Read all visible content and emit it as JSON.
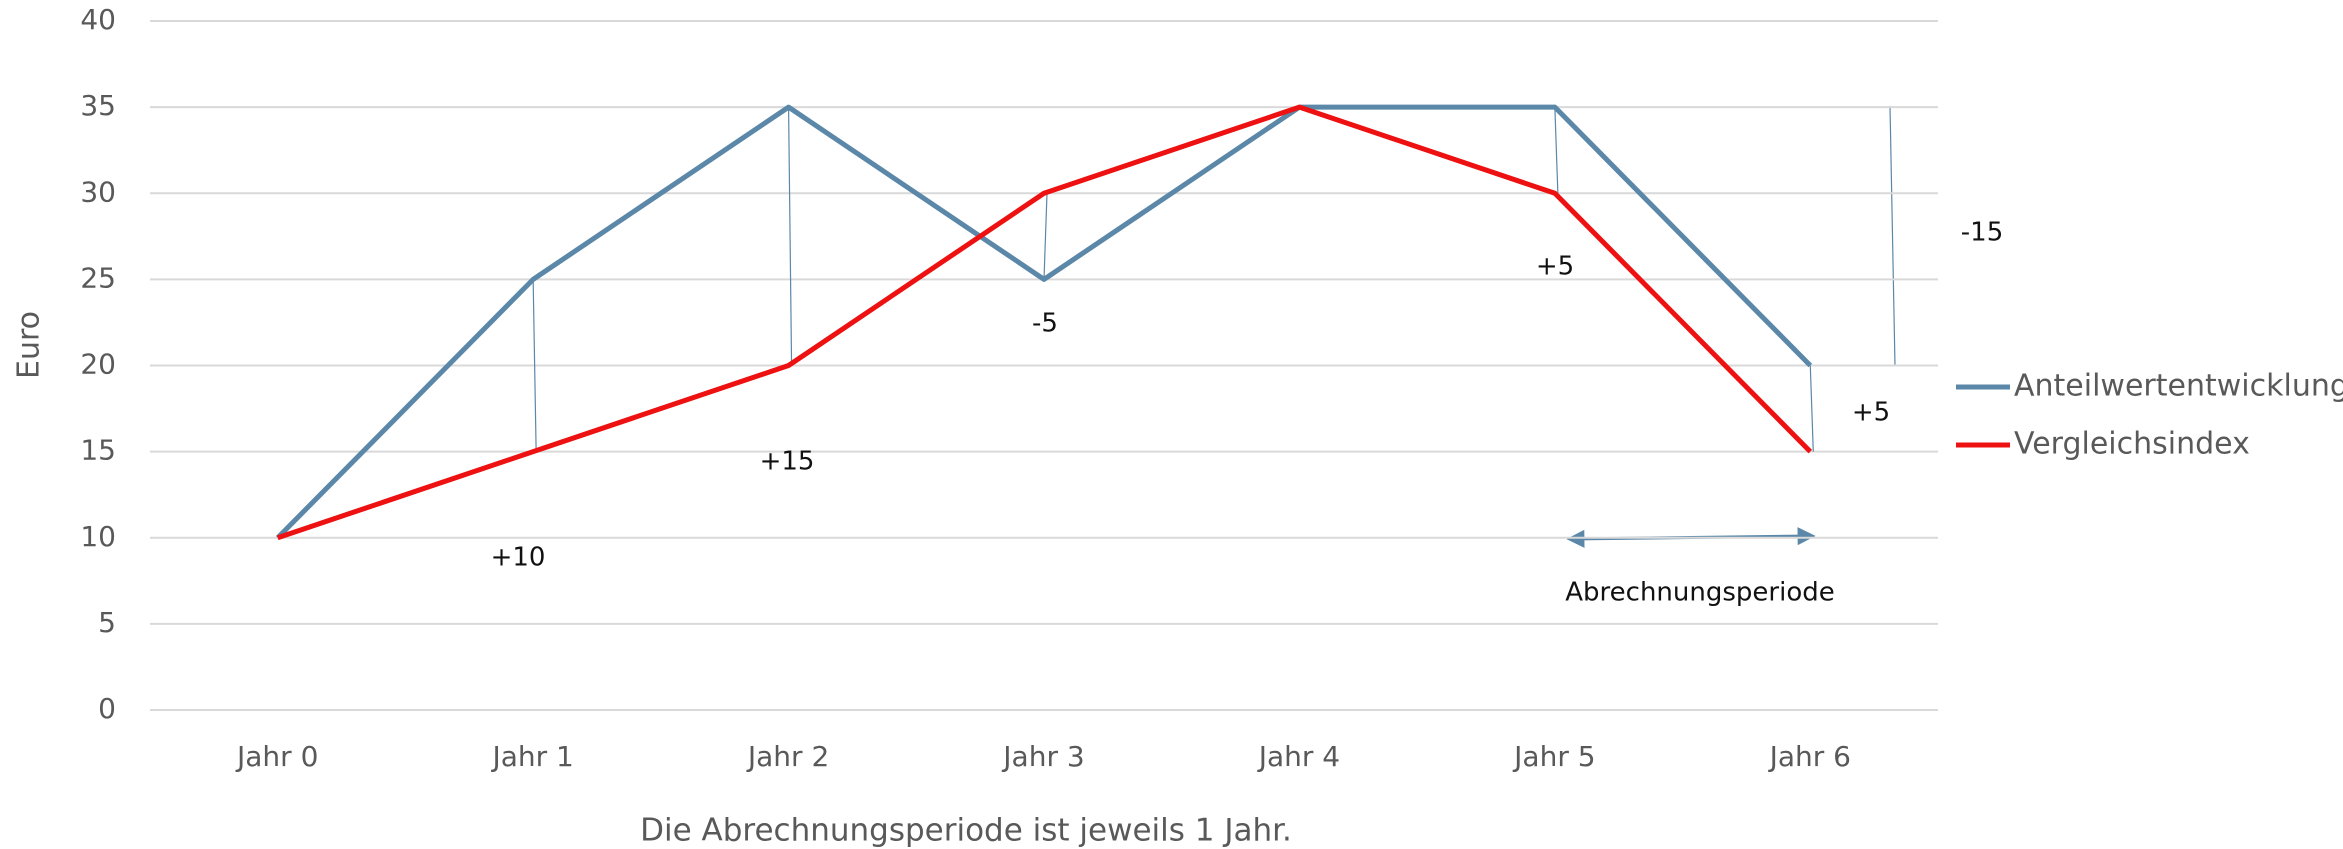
{
  "chart_data": {
    "type": "line",
    "categories": [
      "Jahr 0",
      "Jahr 1",
      "Jahr 2",
      "Jahr 3",
      "Jahr 4",
      "Jahr 5",
      "Jahr 6"
    ],
    "series": [
      {
        "name": "Anteilwertentwicklung",
        "color": "#5b87a8",
        "values": [
          10,
          25,
          35,
          25,
          35,
          35,
          20
        ]
      },
      {
        "name": "Vergleichsindex",
        "color": "#ee1111",
        "values": [
          10,
          15,
          20,
          30,
          35,
          30,
          15
        ]
      }
    ],
    "ylabel": "Euro",
    "caption": "Die Abrechnungsperiode ist jeweils 1 Jahr.",
    "annotations": [
      "+10",
      "+15",
      "-5",
      "+5",
      "-15",
      "+5",
      "Abrechnungsperiode"
    ],
    "ylim": [
      0,
      40
    ],
    "yticks": [
      0,
      5,
      10,
      15,
      20,
      25,
      30,
      35,
      40
    ],
    "grid": true,
    "legend": "right"
  }
}
